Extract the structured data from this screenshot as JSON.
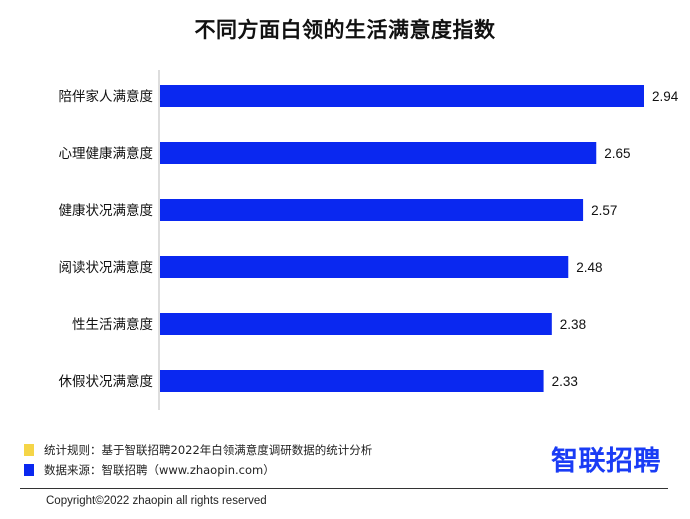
{
  "chart_data": {
    "type": "bar",
    "orientation": "horizontal",
    "title": "不同方面白领的生活满意度指数",
    "categories": [
      "陪伴家人满意度",
      "心理健康满意度",
      "健康状况满意度",
      "阅读状况满意度",
      "性生活满意度",
      "休假状况满意度"
    ],
    "values": [
      2.94,
      2.65,
      2.57,
      2.48,
      2.38,
      2.33
    ],
    "value_labels": [
      "2.94",
      "2.65",
      "2.57",
      "2.48",
      "2.38",
      "2.33"
    ],
    "xlim": [
      0,
      2.94
    ],
    "grid": false,
    "bar_color": "#0a28f0"
  },
  "notes": {
    "rule": "统计规则：基于智联招聘2022年白领满意度调研数据的统计分析",
    "rule_color": "#f5d547",
    "source": "数据来源：智联招聘（www.zhaopin.com）",
    "source_color": "#0a28f0"
  },
  "logo": {
    "text": "智联招聘",
    "color": "#1a3cf5"
  },
  "copyright": "Copyright©2022 zhaopin all rights reserved"
}
